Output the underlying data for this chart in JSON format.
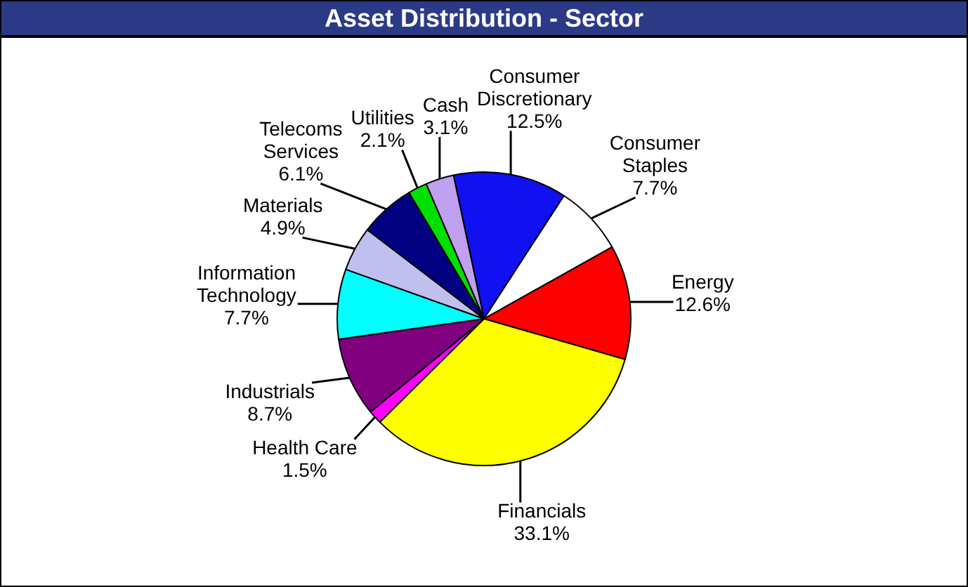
{
  "chart_data": {
    "type": "pie",
    "title": "Asset Distribution - Sector",
    "categories": [
      "Consumer Discretionary",
      "Consumer Staples",
      "Energy",
      "Financials",
      "Health Care",
      "Industrials",
      "Information Technology",
      "Materials",
      "Telecoms Services",
      "Utilities",
      "Cash"
    ],
    "values": [
      12.5,
      7.7,
      12.6,
      33.1,
      1.5,
      8.7,
      7.7,
      4.9,
      6.1,
      2.1,
      3.1
    ],
    "value_labels": [
      "12.5%",
      "7.7%",
      "12.6%",
      "33.1%",
      "1.5%",
      "8.7%",
      "7.7%",
      "4.9%",
      "6.1%",
      "2.1%",
      "3.1%"
    ],
    "colors": [
      "#1010f0",
      "#ffffff",
      "#ff0000",
      "#ffff00",
      "#ff00ff",
      "#800080",
      "#00ffff",
      "#c0c0f0",
      "#000080",
      "#00e000",
      "#c0a0f0"
    ],
    "legend": false
  }
}
